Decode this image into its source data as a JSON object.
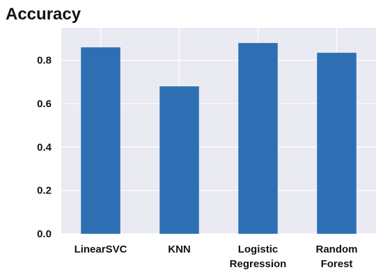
{
  "chart_data": {
    "type": "bar",
    "title": "Accuracy",
    "categories": [
      [
        "LinearSVC"
      ],
      [
        "KNN"
      ],
      [
        "Logistic",
        "Regression"
      ],
      [
        "Random",
        "Forest"
      ]
    ],
    "values": [
      0.86,
      0.68,
      0.88,
      0.835
    ],
    "ylim": [
      0,
      0.95
    ],
    "yticks": [
      "0.0",
      "0.2",
      "0.4",
      "0.6",
      "0.8"
    ],
    "grid": true,
    "colors": {
      "bar": "#2e6fb4",
      "plot_bg": "#eaeaf2",
      "grid": "#ffffff"
    }
  }
}
